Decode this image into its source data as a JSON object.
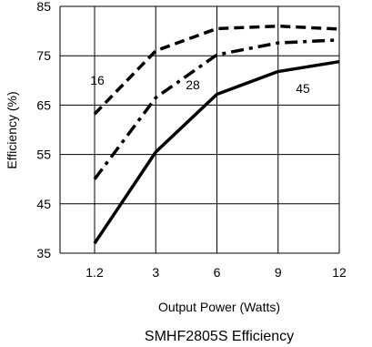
{
  "chart_data": {
    "type": "line",
    "title": "SMHF2805S Efficiency",
    "xlabel": "Output Power (Watts)",
    "ylabel": "Efficiency (%)",
    "categories": [
      "1.2",
      "3",
      "6",
      "9",
      "12"
    ],
    "ylim": [
      35,
      85
    ],
    "yticks": [
      35,
      45,
      55,
      65,
      75,
      85
    ],
    "grid": "vertical lines at categories, horizontal lines at y ticks",
    "series": [
      {
        "name": "16",
        "style": "dashed",
        "values": [
          63.2,
          76.0,
          80.5,
          81.0,
          80.4
        ]
      },
      {
        "name": "28",
        "style": "dash-dot",
        "values": [
          50.0,
          66.5,
          75.2,
          77.6,
          78.2
        ]
      },
      {
        "name": "45",
        "style": "solid",
        "values": [
          37.0,
          55.5,
          67.2,
          71.8,
          73.8
        ]
      }
    ]
  }
}
